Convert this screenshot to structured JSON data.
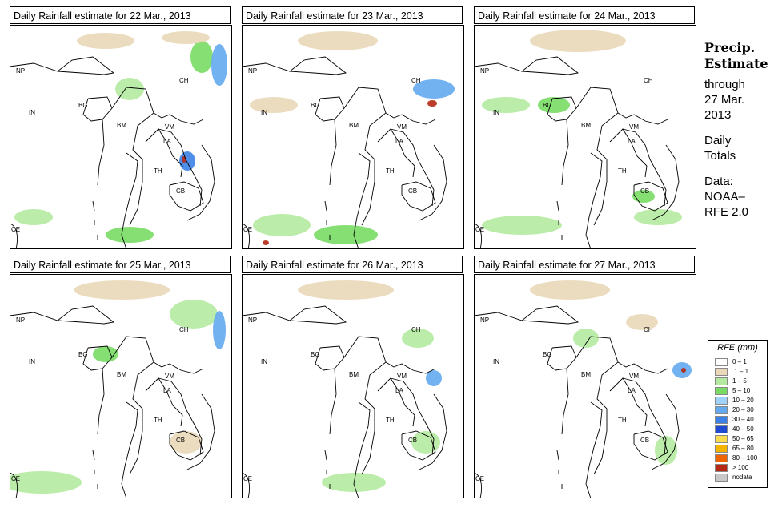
{
  "panels": [
    {
      "title": "Daily Rainfall estimate for  22 Mar., 2013",
      "day": "22"
    },
    {
      "title": "Daily Rainfall estimate for  23 Mar., 2013",
      "day": "23"
    },
    {
      "title": "Daily Rainfall estimate for  24 Mar., 2013",
      "day": "24"
    },
    {
      "title": "Daily Rainfall estimate for  25 Mar., 2013",
      "day": "25"
    },
    {
      "title": "Daily Rainfall estimate for  26 Mar., 2013",
      "day": "26"
    },
    {
      "title": "Daily Rainfall estimate for  27 Mar., 2013",
      "day": "27"
    }
  ],
  "country_labels": [
    "NP",
    "CH",
    "IN",
    "BG",
    "BM",
    "VM",
    "LA",
    "TH",
    "CB",
    "CE"
  ],
  "side": {
    "heading_line1": "Precip.",
    "heading_line2": "Estimate",
    "through_line1": "through",
    "through_line2": "27 Mar.",
    "through_line3": "2013",
    "daily_line1": "Daily",
    "daily_line2": "Totals",
    "data_line1": "Data:",
    "data_line2": "NOAA–",
    "data_line3": "RFE 2.0"
  },
  "legend": {
    "title": "RFE (mm)",
    "items": [
      {
        "label": "0 – 1",
        "color": "#ffffff"
      },
      {
        "label": ".1 – 1",
        "color": "#ead8b8"
      },
      {
        "label": "1 – 5",
        "color": "#b4eaa0"
      },
      {
        "label": "5 – 10",
        "color": "#78dc64"
      },
      {
        "label": "10 – 20",
        "color": "#a0d2fa"
      },
      {
        "label": "20 – 30",
        "color": "#64aaf0"
      },
      {
        "label": "30 – 40",
        "color": "#3c82e6"
      },
      {
        "label": "40 – 50",
        "color": "#1e4bd2"
      },
      {
        "label": "50 – 65",
        "color": "#fadc50"
      },
      {
        "label": "65 – 80",
        "color": "#f5b400"
      },
      {
        "label": "80 – 100",
        "color": "#f06400"
      },
      {
        "label": "> 100",
        "color": "#b42814"
      },
      {
        "label": "nodata",
        "color": "#c8c8c8"
      }
    ]
  }
}
